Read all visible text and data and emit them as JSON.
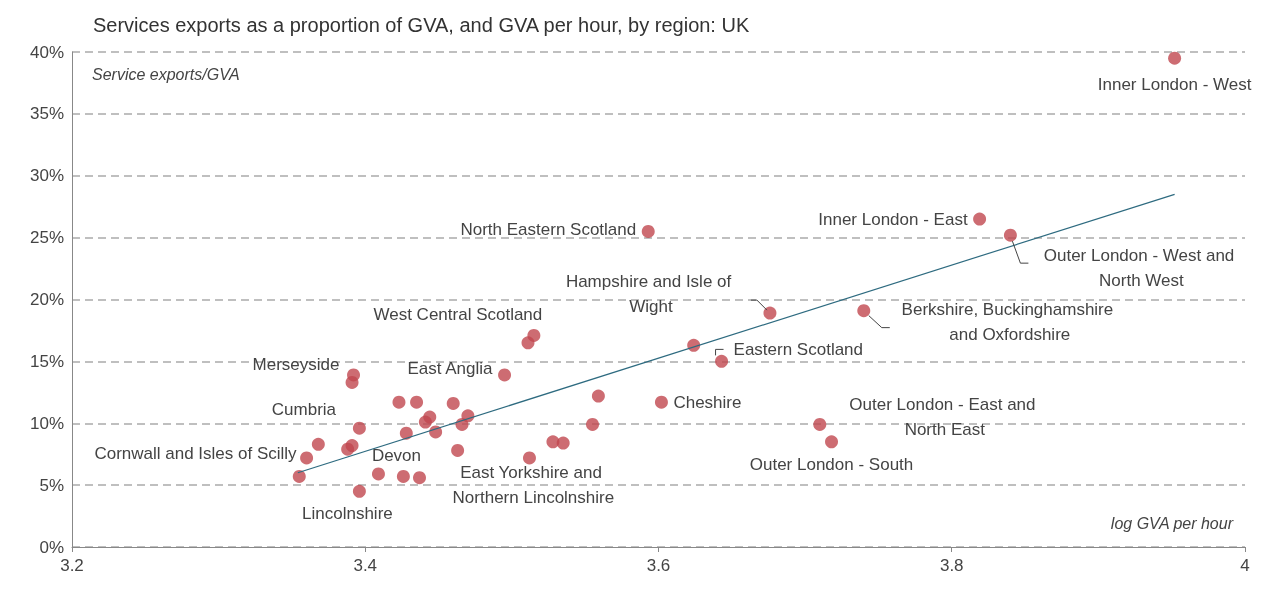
{
  "chart_data": {
    "type": "scatter",
    "title": "Services exports as a proportion of GVA, and GVA per hour, by region: UK",
    "xlabel": "log GVA per hour",
    "ylabel": "Service exports/GVA",
    "xlim": [
      3.2,
      4
    ],
    "xticks": [
      3.2,
      3.4,
      3.6,
      3.8,
      4
    ],
    "ylim": [
      0,
      40
    ],
    "yticks": [
      {
        "value": 0,
        "label": "0%"
      },
      {
        "value": 5,
        "label": "5%"
      },
      {
        "value": 10,
        "label": "10%"
      },
      {
        "value": 15,
        "label": "15%"
      },
      {
        "value": 20,
        "label": "20%"
      },
      {
        "value": 25,
        "label": "25%"
      },
      {
        "value": 30,
        "label": "30%"
      },
      {
        "value": 35,
        "label": "35%"
      },
      {
        "value": 40,
        "label": "40%"
      }
    ],
    "grid": "y",
    "series": [
      {
        "marker": "circle",
        "color": "#c1474f",
        "x": [
          3.952,
          3.819,
          3.84,
          3.593,
          3.676,
          3.74,
          3.624,
          3.643,
          3.515,
          3.511,
          3.495,
          3.392,
          3.391,
          3.602,
          3.559,
          3.555,
          3.71,
          3.718,
          3.423,
          3.435,
          3.46,
          3.444,
          3.441,
          3.47,
          3.466,
          3.396,
          3.428,
          3.448,
          3.368,
          3.391,
          3.388,
          3.36,
          3.463,
          3.512,
          3.528,
          3.535,
          3.355,
          3.409,
          3.426,
          3.437,
          3.396
        ],
        "values": [
          39.5,
          26.5,
          25.2,
          25.5,
          18.9,
          19.1,
          16.3,
          15.0,
          17.1,
          16.5,
          13.9,
          13.9,
          13.3,
          11.7,
          12.2,
          9.9,
          9.9,
          8.5,
          11.7,
          11.7,
          11.6,
          10.5,
          10.1,
          10.6,
          9.9,
          9.6,
          9.2,
          9.3,
          8.3,
          8.2,
          7.9,
          7.2,
          7.8,
          7.2,
          8.5,
          8.4,
          5.7,
          5.9,
          5.7,
          5.6,
          4.5
        ]
      },
      {
        "type": "line",
        "marker": "none",
        "color": "#2e6b80",
        "line_style": "solid",
        "x": [
          3.354,
          3.952
        ],
        "values": [
          6.0,
          28.5
        ]
      }
    ],
    "annotations": [
      {
        "text": "Inner London - West",
        "x": 3.952,
        "y": 39.5
      },
      {
        "text": "Inner London - East",
        "x": 3.819,
        "y": 26.5
      },
      {
        "text": "Outer London - West and North West",
        "x": 3.84,
        "y": 25.2
      },
      {
        "text": "North Eastern Scotland",
        "x": 3.593,
        "y": 25.5
      },
      {
        "text": "Hampshire and Isle of Wight",
        "x": 3.676,
        "y": 18.9
      },
      {
        "text": "Berkshire, Buckinghamshire and Oxfordshire",
        "x": 3.74,
        "y": 19.1
      },
      {
        "text": "Eastern Scotland",
        "x": 3.643,
        "y": 15.0
      },
      {
        "text": "West Central Scotland",
        "x": 3.515,
        "y": 17.1
      },
      {
        "text": "East Anglia",
        "x": 3.495,
        "y": 13.9
      },
      {
        "text": "Merseyside",
        "x": 3.392,
        "y": 13.9
      },
      {
        "text": "Cheshire",
        "x": 3.602,
        "y": 11.7
      },
      {
        "text": "Outer London - East and North East",
        "x": 3.71,
        "y": 9.9
      },
      {
        "text": "Outer London - South",
        "x": 3.718,
        "y": 8.5
      },
      {
        "text": "Cumbria",
        "x": 3.391,
        "y": 8.2
      },
      {
        "text": "Cornwall and Isles of Scilly",
        "x": 3.36,
        "y": 7.2
      },
      {
        "text": "Devon",
        "x": 3.409,
        "y": 5.9
      },
      {
        "text": "East Yorkshire and Northern Lincolnshire",
        "x": 3.426,
        "y": 5.7
      },
      {
        "text": "Lincolnshire",
        "x": 3.396,
        "y": 4.5
      }
    ]
  }
}
